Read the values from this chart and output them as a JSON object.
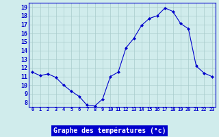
{
  "x": [
    0,
    1,
    2,
    3,
    4,
    5,
    6,
    7,
    8,
    9,
    10,
    11,
    12,
    13,
    14,
    15,
    16,
    17,
    18,
    19,
    20,
    21,
    22,
    23
  ],
  "y": [
    11.5,
    11.1,
    11.3,
    10.9,
    10.0,
    9.3,
    8.7,
    7.7,
    7.6,
    8.4,
    11.0,
    11.5,
    14.3,
    15.4,
    16.9,
    17.7,
    18.0,
    18.9,
    18.5,
    17.1,
    16.5,
    12.2,
    11.4,
    11.0
  ],
  "line_color": "#0000cc",
  "marker_color": "#0000cc",
  "bg_color": "#d0ecec",
  "grid_color": "#a8cccc",
  "axis_label_color": "#0000cc",
  "title": "Graphe des températures (°c)",
  "xlabel_bg": "#0000cc",
  "xlabel_fg": "#ffffff",
  "ylim": [
    7.5,
    19.5
  ],
  "yticks": [
    8,
    9,
    10,
    11,
    12,
    13,
    14,
    15,
    16,
    17,
    18,
    19
  ],
  "xticks": [
    0,
    1,
    2,
    3,
    4,
    5,
    6,
    7,
    8,
    9,
    10,
    11,
    12,
    13,
    14,
    15,
    16,
    17,
    18,
    19,
    20,
    21,
    22,
    23
  ],
  "figsize": [
    3.2,
    2.0
  ],
  "dpi": 100
}
